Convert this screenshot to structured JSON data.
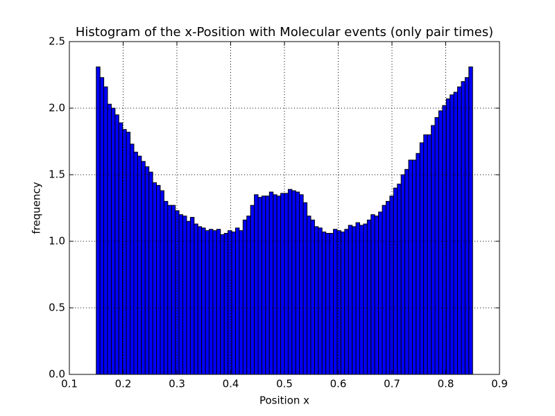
{
  "chart_data": {
    "type": "histogram",
    "title": "Histogram of the x-Position with Molecular events (only pair times)",
    "xlabel": "Position x",
    "ylabel": "frequency",
    "color": "#0000ff",
    "edgecolor": "#000000",
    "grid": true,
    "xlim": [
      0.1,
      0.9
    ],
    "ylim": [
      0,
      2.5
    ],
    "xticks": [
      0.1,
      0.2,
      0.3,
      0.4,
      0.5,
      0.6,
      0.7,
      0.8,
      0.9
    ],
    "yticks": [
      {
        "value": 0,
        "label": "0.0"
      },
      0.5,
      {
        "value": 1,
        "label": "1.0"
      },
      1.5,
      {
        "value": 2,
        "label": "2.0"
      },
      2.5
    ],
    "bins": [
      0.15,
      0.157,
      0.164,
      0.171,
      0.178,
      0.185,
      0.192,
      0.199,
      0.206,
      0.213,
      0.22,
      0.227,
      0.234,
      0.241,
      0.248,
      0.255,
      0.262,
      0.269,
      0.276,
      0.283,
      0.29,
      0.297,
      0.304,
      0.311,
      0.318,
      0.325,
      0.332,
      0.339,
      0.346,
      0.353,
      0.36,
      0.367,
      0.374,
      0.381,
      0.388,
      0.395,
      0.402,
      0.409,
      0.416,
      0.423,
      0.43,
      0.437,
      0.444,
      0.451,
      0.458,
      0.465,
      0.472,
      0.479,
      0.486,
      0.493,
      0.5,
      0.507,
      0.514,
      0.521,
      0.528,
      0.535,
      0.542,
      0.549,
      0.556,
      0.563,
      0.57,
      0.577,
      0.584,
      0.591,
      0.598,
      0.605,
      0.612,
      0.619,
      0.626,
      0.633,
      0.64,
      0.647,
      0.654,
      0.661,
      0.668,
      0.675,
      0.682,
      0.689,
      0.696,
      0.703,
      0.71,
      0.717,
      0.724,
      0.731,
      0.738,
      0.745,
      0.752,
      0.759,
      0.766,
      0.773,
      0.78,
      0.787,
      0.794,
      0.801,
      0.808,
      0.815,
      0.822,
      0.829,
      0.836,
      0.843,
      0.85
    ],
    "values": [
      2.31,
      2.23,
      2.16,
      2.03,
      2.0,
      1.95,
      1.89,
      1.84,
      1.82,
      1.73,
      1.67,
      1.64,
      1.6,
      1.56,
      1.52,
      1.44,
      1.42,
      1.38,
      1.3,
      1.27,
      1.27,
      1.23,
      1.2,
      1.19,
      1.15,
      1.18,
      1.13,
      1.11,
      1.1,
      1.08,
      1.09,
      1.08,
      1.09,
      1.05,
      1.06,
      1.08,
      1.07,
      1.1,
      1.08,
      1.16,
      1.19,
      1.27,
      1.35,
      1.33,
      1.34,
      1.34,
      1.37,
      1.35,
      1.34,
      1.36,
      1.36,
      1.39,
      1.38,
      1.37,
      1.35,
      1.29,
      1.19,
      1.16,
      1.11,
      1.1,
      1.07,
      1.06,
      1.06,
      1.09,
      1.08,
      1.07,
      1.09,
      1.12,
      1.11,
      1.14,
      1.12,
      1.13,
      1.16,
      1.2,
      1.19,
      1.22,
      1.27,
      1.3,
      1.34,
      1.4,
      1.43,
      1.5,
      1.54,
      1.61,
      1.61,
      1.66,
      1.74,
      1.8,
      1.8,
      1.87,
      1.93,
      1.98,
      2.02,
      2.07,
      2.1,
      2.12,
      2.16,
      2.2,
      2.23,
      2.31
    ]
  }
}
